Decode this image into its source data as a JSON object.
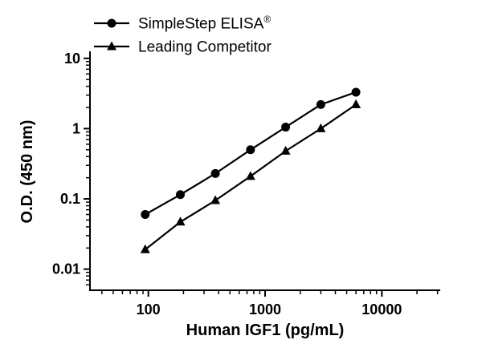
{
  "chart_data": {
    "type": "line",
    "title": "",
    "xlabel": "Human IGF1 (pg/mL)",
    "ylabel": "O.D. (450 nm)",
    "x_scale": "log",
    "y_scale": "log",
    "x_ticks": [
      100,
      1000,
      10000
    ],
    "y_ticks": [
      10,
      1,
      0.1,
      0.01
    ],
    "x_range_log": [
      1.5,
      4.5
    ],
    "y_range_log": [
      -2.3,
      1.1
    ],
    "grid": false,
    "legend_position": "top-left",
    "axis_color": "#000000",
    "series": [
      {
        "name": "SimpleStep ELISA",
        "name_suffix": "®",
        "marker": "circle",
        "color": "#000000",
        "x": [
          94,
          188,
          375,
          750,
          1500,
          3000,
          6000
        ],
        "y": [
          0.06,
          0.115,
          0.23,
          0.5,
          1.05,
          2.2,
          3.3
        ]
      },
      {
        "name": "Leading Competitor",
        "name_suffix": "",
        "marker": "triangle",
        "color": "#000000",
        "x": [
          94,
          188,
          375,
          750,
          1500,
          3000,
          6000
        ],
        "y": [
          0.019,
          0.047,
          0.095,
          0.21,
          0.48,
          1.0,
          2.2
        ]
      }
    ]
  }
}
